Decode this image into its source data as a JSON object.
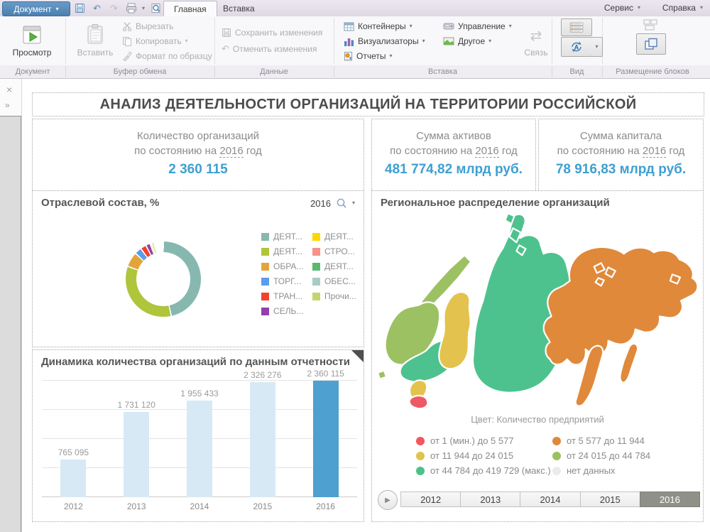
{
  "icons": {
    "caret_down": "▾",
    "close": "×",
    "chevrons_right": "»",
    "play": "▶",
    "undo_arrow": "↶",
    "redo_arrow": "↷",
    "link_arrows": "⇄"
  },
  "chrome": {
    "document_button": "Документ",
    "tabs": [
      {
        "label": "Главная",
        "active": true
      },
      {
        "label": "Вставка",
        "active": false
      }
    ],
    "menus_right": {
      "service": "Сервис",
      "help": "Справка"
    },
    "ribbon": {
      "preview": "Просмотр",
      "paste": "Вставить",
      "cut": "Вырезать",
      "copy": "Копировать",
      "format_painter": "Формат по образцу",
      "save_changes": "Сохранить изменения",
      "undo_changes": "Отменить изменения",
      "containers": "Контейнеры",
      "visualizers": "Визуализаторы",
      "reports": "Отчеты",
      "management": "Управление",
      "other": "Другое",
      "link": "Связь",
      "groups": {
        "document": "Документ",
        "clipboard": "Буфер обмена",
        "data": "Данные",
        "insert": "Вставка",
        "view": "Вид",
        "layout": "Размещение блоков"
      }
    }
  },
  "dashboard": {
    "title": "АНАЛИЗ ДЕЯТЕЛЬНОСТИ ОРГАНИЗАЦИЙ НА ТЕРРИТОРИИ РОССИЙСКОЙ",
    "kpis": [
      {
        "line1": "Количество организаций",
        "line2_prefix": "по состоянию на",
        "year": "2016",
        "line2_suffix": "год",
        "value": "2 360 115"
      },
      {
        "line1": "Сумма активов",
        "line2_prefix": "по состоянию на",
        "year": "2016",
        "line2_suffix": "год",
        "value": "481 774,82 млрд руб."
      },
      {
        "line1": "Сумма капитала",
        "line2_prefix": "по состоянию на",
        "year": "2016",
        "line2_suffix": "год",
        "value": "78 916,83 млрд руб."
      }
    ],
    "industry": {
      "title": "Отраслевой состав, %",
      "year": "2016",
      "legend_left": [
        {
          "label": "ДЕЯТ...",
          "color": "#87B8B0"
        },
        {
          "label": "ДЕЯТ...",
          "color": "#AEC53C"
        },
        {
          "label": "ОБРА...",
          "color": "#E3A43C"
        },
        {
          "label": "ТОРГ...",
          "color": "#5C9CEC"
        },
        {
          "label": "ТРАН...",
          "color": "#F4402E"
        },
        {
          "label": "СЕЛЬ...",
          "color": "#9340AC"
        }
      ],
      "legend_right": [
        {
          "label": "ДЕЯТ...",
          "color": "#FFD600"
        },
        {
          "label": "СТРО...",
          "color": "#F8918A"
        },
        {
          "label": "ДЕЯТ...",
          "color": "#5BBA6F"
        },
        {
          "label": "ОБЕС...",
          "color": "#A9CBC6"
        },
        {
          "label": "Прочи...",
          "color": "#C2D66B"
        }
      ]
    },
    "map": {
      "title": "Региональное распределение организаций",
      "color_caption": "Цвет: Количество предприятий",
      "legend": [
        {
          "label": "от 1 (мин.) до 5 577",
          "color": "#F4555E"
        },
        {
          "label": "от 5 577 до 11 944",
          "color": "#DE8A3A"
        },
        {
          "label": "от 11 944 до 24 015",
          "color": "#E2C34B"
        },
        {
          "label": "от 24 015 до 44 784",
          "color": "#9BC161"
        },
        {
          "label": "от 44 784 до 419 729 (макс.)",
          "color": "#4BC287"
        },
        {
          "label": "нет данных",
          "color": "#EBEBEB"
        }
      ],
      "region_colors": {
        "kola": "#9CC162",
        "kaliningrad": "#9CC162",
        "northwest": "#9CC162",
        "volga": "#4EC28E",
        "south_yellow": "#E3C34D",
        "caucasus": "#EF5965",
        "ural": "#E3C34D",
        "siberia": "#4EC28E",
        "sevzem1": "#4EC28E",
        "sevzem2": "#4EC28E",
        "sevzem3": "#4EC28E",
        "fareast": "#E0893B",
        "kamchatka": "#E0893B",
        "sakhalin": "#E0893B",
        "novosib1": "#E0893B",
        "novosib2": "#E0893B",
        "novosib3": "#E0893B",
        "chukotka_isl": "#E0893B"
      },
      "years": [
        "2012",
        "2013",
        "2014",
        "2015",
        "2016"
      ],
      "selected_year": "2016"
    }
  },
  "chart_data": [
    {
      "type": "pie",
      "title": "Отраслевой состав, %",
      "year": "2016",
      "legend_position": "right",
      "segments": [
        {
          "label": "ДЕЯТ...",
          "color": "#87B8B0",
          "value": 46.6
        },
        {
          "label": "ДЕЯТ...",
          "color": "#AEC53C",
          "value": 33.9
        },
        {
          "label": "ОБРА...",
          "color": "#E3A43C",
          "value": 6.4
        },
        {
          "label": "ТОРГ...",
          "color": "#5C9CEC",
          "value": 3.0
        },
        {
          "label": "ТРАН...",
          "color": "#F4402E",
          "value": 2.5
        },
        {
          "label": "СЕЛЬ...",
          "color": "#9340AC",
          "value": 1.9
        },
        {
          "label": "ДЕЯТ...",
          "color": "#E2DE4A",
          "value": 0.7
        },
        {
          "label": "Прочи...",
          "color": "#C2D66B",
          "value": 0.9
        }
      ]
    },
    {
      "type": "bar",
      "title": "Динамика количества организаций по данным отчетности",
      "categories": [
        "2012",
        "2013",
        "2014",
        "2015",
        "2016"
      ],
      "values": [
        765095,
        1731120,
        1955433,
        2326276,
        2360115
      ],
      "labels": [
        "765 095",
        "1 731 120",
        "1 955 433",
        "2 326 276",
        "2 360 115"
      ],
      "highlight_index": 4,
      "bar_color": "#D7E9F5",
      "highlight_color": "#4DA0CF",
      "ylim": [
        0,
        2360115
      ],
      "grid": true
    }
  ]
}
